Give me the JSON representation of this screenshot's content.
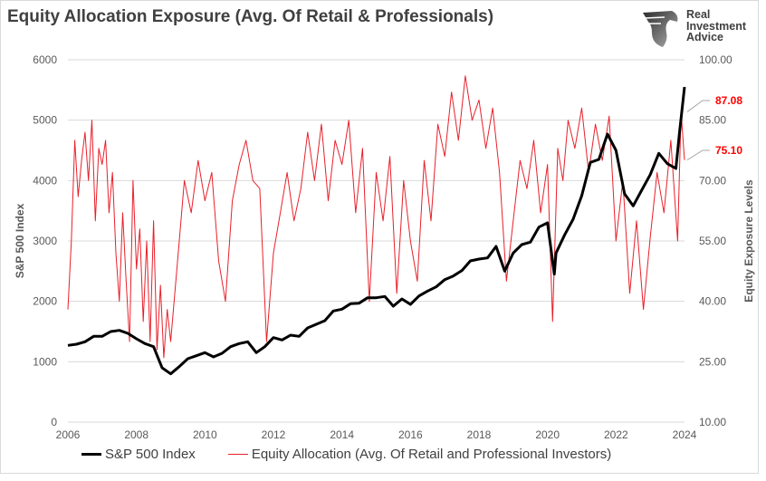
{
  "title": "Equity Allocation Exposure (Avg. Of Retail & Professionals)",
  "logo": {
    "text": [
      "Real",
      "Investment",
      "Advice"
    ],
    "icon": "eagle-head-icon"
  },
  "chart_data": {
    "type": "line",
    "title": "Equity Allocation Exposure (Avg. Of Retail & Professionals)",
    "xlabel": "",
    "ylabel": "S&P 500 Index",
    "y2label": "Equity Exposure Levels",
    "xlim": [
      2006,
      2024
    ],
    "ylim": [
      0,
      6000
    ],
    "y2lim": [
      10,
      100
    ],
    "x_ticks": [
      "2006",
      "2008",
      "2010",
      "2012",
      "2014",
      "2016",
      "2018",
      "2020",
      "2022",
      "2024"
    ],
    "y_ticks": [
      "0",
      "1000",
      "2000",
      "3000",
      "4000",
      "5000",
      "6000"
    ],
    "y2_ticks": [
      "10.00",
      "25.00",
      "40.00",
      "55.00",
      "70.00",
      "85.00",
      "100.00"
    ],
    "grid": "horizontal",
    "legend": "bottom",
    "annotations": [
      {
        "text": "87.08",
        "value": 87.08,
        "color": "#ff0000"
      },
      {
        "text": "75.10",
        "value": 75.1,
        "color": "#ff0000"
      }
    ],
    "series": [
      {
        "name": "S&P 500 Index",
        "axis": "left",
        "color": "#000000",
        "x": [
          2006,
          2006.25,
          2006.5,
          2006.75,
          2007,
          2007.25,
          2007.5,
          2007.75,
          2008,
          2008.25,
          2008.5,
          2008.75,
          2009,
          2009.25,
          2009.5,
          2009.75,
          2010,
          2010.25,
          2010.5,
          2010.75,
          2011,
          2011.25,
          2011.5,
          2011.75,
          2012,
          2012.25,
          2012.5,
          2012.75,
          2013,
          2013.25,
          2013.5,
          2013.75,
          2014,
          2014.25,
          2014.5,
          2014.75,
          2015,
          2015.25,
          2015.5,
          2015.75,
          2016,
          2016.25,
          2016.5,
          2016.75,
          2017,
          2017.25,
          2017.5,
          2017.75,
          2018,
          2018.25,
          2018.5,
          2018.75,
          2019,
          2019.25,
          2019.5,
          2019.75,
          2020,
          2020.2,
          2020.25,
          2020.5,
          2020.75,
          2021,
          2021.25,
          2021.5,
          2021.75,
          2022,
          2022.25,
          2022.5,
          2022.75,
          2023,
          2023.25,
          2023.5,
          2023.75,
          2023.85,
          2024
        ],
        "values": [
          1270,
          1290,
          1330,
          1420,
          1420,
          1500,
          1520,
          1470,
          1380,
          1300,
          1250,
          900,
          800,
          920,
          1050,
          1100,
          1150,
          1080,
          1140,
          1250,
          1300,
          1330,
          1150,
          1250,
          1400,
          1360,
          1440,
          1420,
          1560,
          1620,
          1680,
          1840,
          1870,
          1960,
          1970,
          2060,
          2060,
          2080,
          1920,
          2040,
          1950,
          2090,
          2170,
          2240,
          2360,
          2420,
          2510,
          2670,
          2700,
          2720,
          2910,
          2500,
          2800,
          2940,
          2980,
          3230,
          3300,
          2450,
          2800,
          3100,
          3360,
          3750,
          4300,
          4350,
          4770,
          4500,
          3780,
          3580,
          3840,
          4100,
          4450,
          4280,
          4200,
          4770,
          5550
        ]
      },
      {
        "name": "Equity Allocation (Avg. Of Retail and Professional Investors)",
        "axis": "right",
        "color": "#e8202a",
        "x": [
          2006,
          2006.1,
          2006.2,
          2006.3,
          2006.4,
          2006.5,
          2006.6,
          2006.7,
          2006.8,
          2006.9,
          2007,
          2007.1,
          2007.2,
          2007.3,
          2007.4,
          2007.5,
          2007.6,
          2007.7,
          2007.8,
          2007.9,
          2008,
          2008.1,
          2008.2,
          2008.3,
          2008.4,
          2008.5,
          2008.6,
          2008.7,
          2008.8,
          2008.9,
          2009,
          2009.2,
          2009.4,
          2009.6,
          2009.8,
          2010,
          2010.2,
          2010.4,
          2010.6,
          2010.8,
          2011,
          2011.2,
          2011.4,
          2011.6,
          2011.8,
          2012,
          2012.2,
          2012.4,
          2012.6,
          2012.8,
          2013,
          2013.2,
          2013.4,
          2013.6,
          2013.8,
          2014,
          2014.2,
          2014.4,
          2014.6,
          2014.8,
          2015,
          2015.2,
          2015.4,
          2015.6,
          2015.8,
          2016,
          2016.2,
          2016.4,
          2016.6,
          2016.8,
          2017,
          2017.2,
          2017.4,
          2017.6,
          2017.8,
          2018,
          2018.2,
          2018.4,
          2018.6,
          2018.8,
          2019,
          2019.2,
          2019.4,
          2019.6,
          2019.8,
          2020,
          2020.15,
          2020.3,
          2020.45,
          2020.6,
          2020.8,
          2021,
          2021.2,
          2021.4,
          2021.6,
          2021.8,
          2022,
          2022.2,
          2022.4,
          2022.6,
          2022.8,
          2023,
          2023.2,
          2023.4,
          2023.6,
          2023.8,
          2023.9,
          2024
        ],
        "values": [
          38,
          55,
          80,
          66,
          75,
          82,
          70,
          85,
          60,
          78,
          74,
          80,
          62,
          72,
          52,
          40,
          62,
          45,
          30,
          70,
          48,
          58,
          35,
          55,
          30,
          60,
          28,
          44,
          26,
          38,
          30,
          50,
          70,
          62,
          75,
          65,
          72,
          50,
          40,
          65,
          74,
          80,
          70,
          68,
          30,
          52,
          62,
          72,
          60,
          68,
          82,
          70,
          84,
          65,
          80,
          74,
          85,
          62,
          78,
          40,
          72,
          60,
          76,
          42,
          70,
          55,
          45,
          75,
          60,
          84,
          76,
          92,
          80,
          96,
          85,
          90,
          78,
          88,
          72,
          45,
          60,
          75,
          68,
          80,
          62,
          74,
          35,
          78,
          70,
          85,
          78,
          88,
          72,
          84,
          75,
          86,
          55,
          70,
          42,
          60,
          38,
          56,
          72,
          62,
          80,
          55,
          87.08,
          75.1
        ]
      }
    ]
  }
}
